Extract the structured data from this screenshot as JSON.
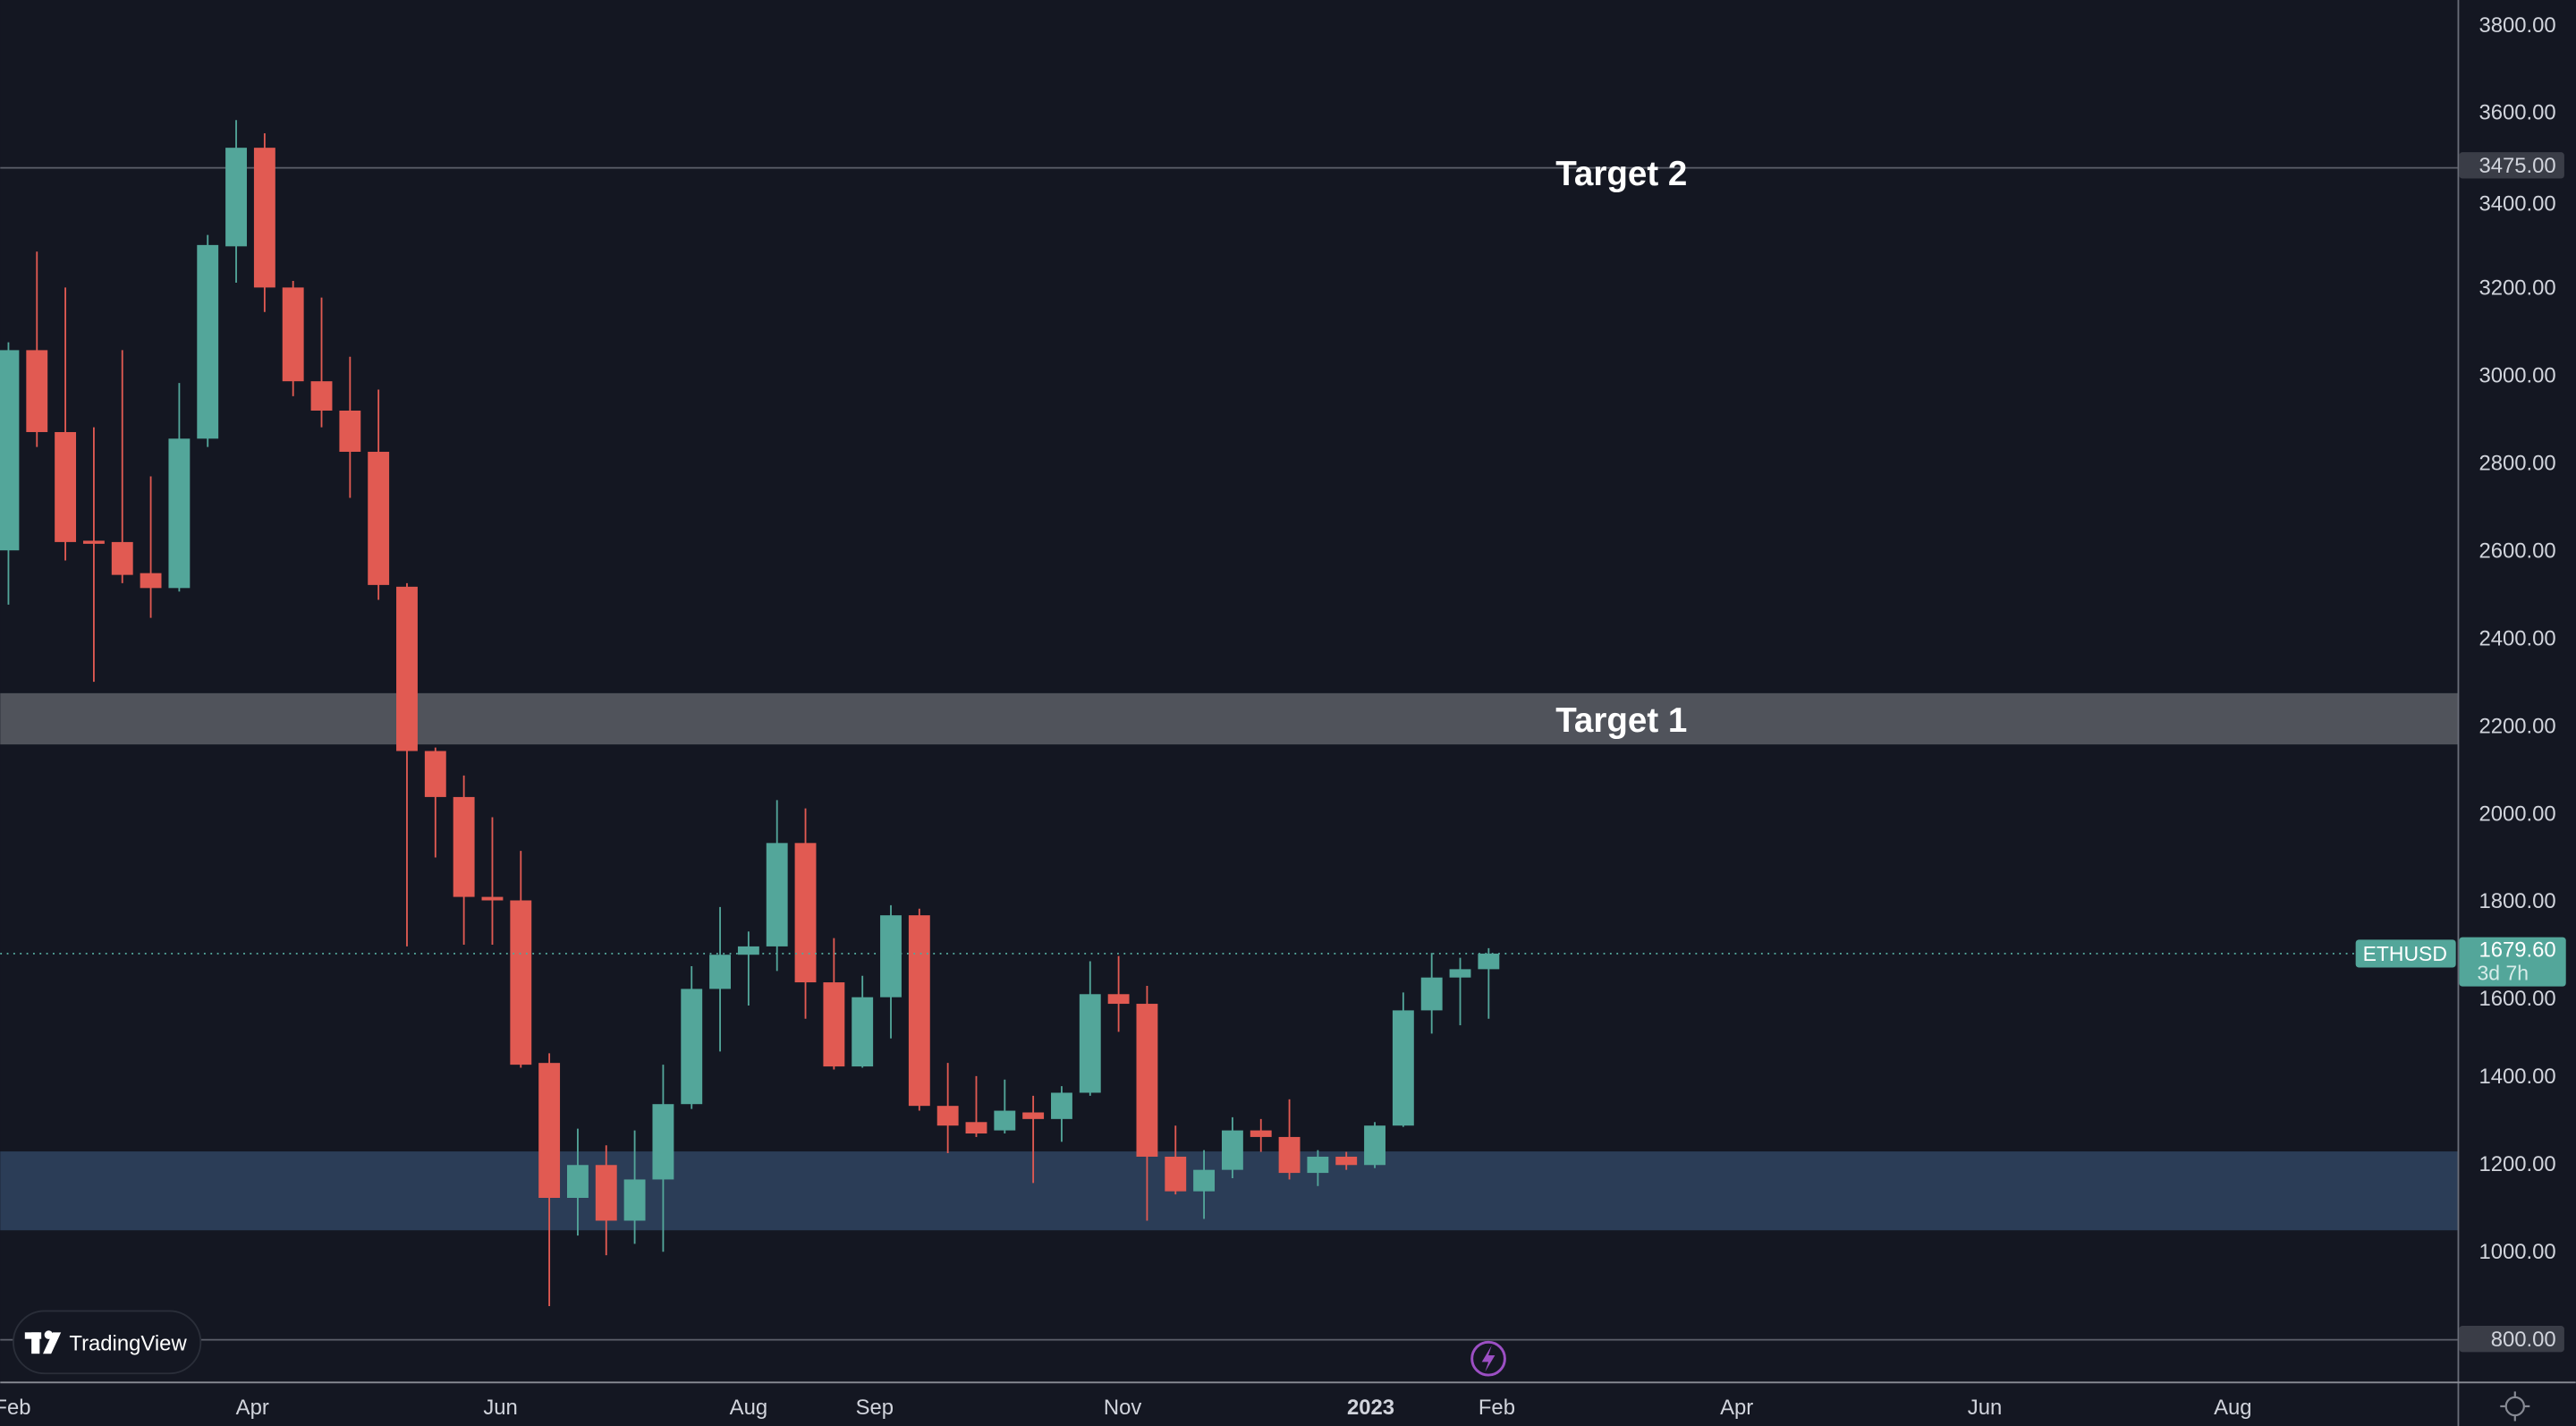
{
  "chart_data": {
    "type": "candlestick",
    "symbol": "ETHUSD",
    "interval": "1W",
    "last_price": "1679.60",
    "countdown": "3d 7h",
    "ylim": [
      750,
      3850
    ],
    "y_ticks": [
      "3800.00",
      "3600.00",
      "3400.00",
      "3200.00",
      "3000.00",
      "2800.00",
      "2600.00",
      "2400.00",
      "2200.00",
      "2000.00",
      "1800.00",
      "1600.00",
      "1400.00",
      "1200.00",
      "1000.00",
      "800.00"
    ],
    "x_ticks": [
      {
        "label": "Feb",
        "date": "2022-02-01",
        "bold": false
      },
      {
        "label": "Apr",
        "date": "2022-04-01",
        "bold": false
      },
      {
        "label": "Jun",
        "date": "2022-06-01",
        "bold": false
      },
      {
        "label": "Aug",
        "date": "2022-08-01",
        "bold": false
      },
      {
        "label": "Sep",
        "date": "2022-09-01",
        "bold": false
      },
      {
        "label": "Nov",
        "date": "2022-11-01",
        "bold": false
      },
      {
        "label": "2023",
        "date": "2023-01-01",
        "bold": true
      },
      {
        "label": "Feb",
        "date": "2023-02-01",
        "bold": false
      },
      {
        "label": "Apr",
        "date": "2023-04-01",
        "bold": false
      },
      {
        "label": "Jun",
        "date": "2023-06-01",
        "bold": false
      },
      {
        "label": "Aug",
        "date": "2023-08-01",
        "bold": false
      }
    ],
    "annotations": {
      "target2": {
        "label": "Target 2",
        "price": 3475,
        "price_label": "3475.00"
      },
      "target1": {
        "label": "Target 1",
        "from": 2157,
        "to": 2274
      },
      "support_zone": {
        "from": 1048,
        "to": 1228
      },
      "bottom_line": {
        "price": 800,
        "price_label": "800.00"
      }
    },
    "colors": {
      "background": "#141722",
      "up": "#53a69a",
      "down": "#e15a52",
      "target1_zone": "#50535b",
      "support_zone": "#2b3d57",
      "line": "#5d606b",
      "event": "#9c4fc4"
    },
    "candles": [
      [
        "2022-01-31",
        2600,
        3075,
        2476,
        3057
      ],
      [
        "2022-02-07",
        3057,
        3282,
        2836,
        2870
      ],
      [
        "2022-02-14",
        2870,
        3200,
        2577,
        2619
      ],
      [
        "2022-02-21",
        2622,
        2881,
        2300,
        2615
      ],
      [
        "2022-02-28",
        2619,
        3057,
        2525,
        2544
      ],
      [
        "2022-03-07",
        2548,
        2769,
        2446,
        2514
      ],
      [
        "2022-03-14",
        2514,
        2982,
        2506,
        2855
      ],
      [
        "2022-03-21",
        2855,
        3320,
        2836,
        3297
      ],
      [
        "2022-03-28",
        3294,
        3582,
        3211,
        3519
      ],
      [
        "2022-04-04",
        3519,
        3552,
        3144,
        3200
      ],
      [
        "2022-04-11",
        3200,
        3215,
        2952,
        2986
      ],
      [
        "2022-04-18",
        2986,
        3177,
        2881,
        2919
      ],
      [
        "2022-04-25",
        2919,
        3042,
        2720,
        2825
      ],
      [
        "2022-05-02",
        2825,
        2967,
        2487,
        2521
      ],
      [
        "2022-05-09",
        2517,
        2525,
        1696,
        2142
      ],
      [
        "2022-05-16",
        2142,
        2150,
        1899,
        2037
      ],
      [
        "2022-05-23",
        2037,
        2086,
        1700,
        1809
      ],
      [
        "2022-05-30",
        1809,
        1991,
        1700,
        1801
      ],
      [
        "2022-06-06",
        1801,
        1914,
        1419,
        1426
      ],
      [
        "2022-06-13",
        1430,
        1452,
        875,
        1122
      ],
      [
        "2022-06-20",
        1122,
        1280,
        1036,
        1197
      ],
      [
        "2022-06-27",
        1197,
        1242,
        991,
        1070
      ],
      [
        "2022-07-04",
        1070,
        1276,
        1017,
        1164
      ],
      [
        "2022-07-11",
        1164,
        1426,
        999,
        1336
      ],
      [
        "2022-07-18",
        1336,
        1651,
        1325,
        1599
      ],
      [
        "2022-07-25",
        1599,
        1786,
        1456,
        1677
      ],
      [
        "2022-08-01",
        1677,
        1730,
        1561,
        1696
      ],
      [
        "2022-08-08",
        1696,
        2030,
        1640,
        1932
      ],
      [
        "2022-08-15",
        1932,
        2011,
        1531,
        1614
      ],
      [
        "2022-08-22",
        1614,
        1715,
        1415,
        1422
      ],
      [
        "2022-08-29",
        1422,
        1629,
        1419,
        1580
      ],
      [
        "2022-09-05",
        1580,
        1790,
        1486,
        1767
      ],
      [
        "2022-09-12",
        1767,
        1782,
        1321,
        1332
      ],
      [
        "2022-09-19",
        1332,
        1430,
        1224,
        1287
      ],
      [
        "2022-09-26",
        1295,
        1400,
        1261,
        1269
      ],
      [
        "2022-10-03",
        1276,
        1392,
        1269,
        1321
      ],
      [
        "2022-10-10",
        1317,
        1355,
        1156,
        1302
      ],
      [
        "2022-10-17",
        1302,
        1377,
        1250,
        1362
      ],
      [
        "2022-10-24",
        1362,
        1662,
        1355,
        1587
      ],
      [
        "2022-10-31",
        1587,
        1674,
        1501,
        1565
      ],
      [
        "2022-11-07",
        1565,
        1606,
        1070,
        1216
      ],
      [
        "2022-11-14",
        1216,
        1287,
        1130,
        1137
      ],
      [
        "2022-11-21",
        1137,
        1231,
        1074,
        1186
      ],
      [
        "2022-11-28",
        1186,
        1306,
        1167,
        1276
      ],
      [
        "2022-12-05",
        1276,
        1302,
        1227,
        1261
      ],
      [
        "2022-12-12",
        1261,
        1347,
        1164,
        1179
      ],
      [
        "2022-12-19",
        1179,
        1231,
        1149,
        1216
      ],
      [
        "2022-12-26",
        1216,
        1227,
        1186,
        1197
      ],
      [
        "2023-01-02",
        1197,
        1295,
        1190,
        1287
      ],
      [
        "2023-01-09",
        1287,
        1591,
        1284,
        1550
      ],
      [
        "2023-01-16",
        1550,
        1681,
        1497,
        1625
      ],
      [
        "2023-01-23",
        1625,
        1670,
        1516,
        1644
      ],
      [
        "2023-01-30",
        1644,
        1692,
        1531,
        1679.6
      ]
    ]
  },
  "branding": {
    "logo_text": "TradingView"
  }
}
